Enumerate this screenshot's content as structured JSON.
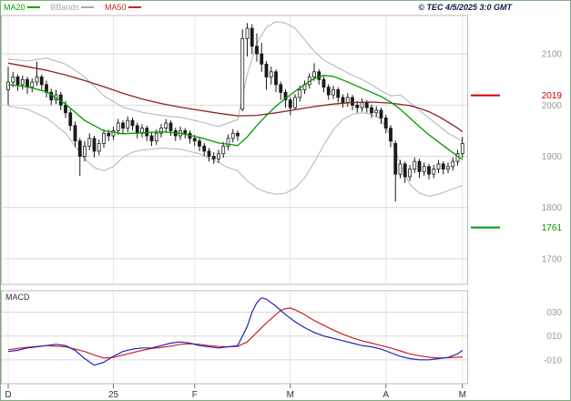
{
  "header": {
    "copyright": "© TEC 4/5/2025 3:0 GMT"
  },
  "legend": {
    "items": [
      {
        "label": "MA20",
        "color": "#00aa00"
      },
      {
        "label": "BBands",
        "color": "#aaaaaa"
      },
      {
        "label": "MA50",
        "color": "#cc2222"
      }
    ]
  },
  "macd_panel": {
    "title": "MACD"
  },
  "levels": {
    "resistance": {
      "value": 2019,
      "label": "2019"
    },
    "support": {
      "value": 1761,
      "label": "1761"
    }
  },
  "colors": {
    "ma20": "#009900",
    "ma50": "#8b2323",
    "bbands": "#b3b3b3",
    "candle": "#1a1a1a",
    "macd_line": "#2222bb",
    "macd_signal": "#cc2222",
    "grid_h": "#d9d9d9",
    "grid_v": "#e7e7e7",
    "frame": "#bbbbbb",
    "axis_text": "#999999",
    "tick_text": "#333333",
    "resistance": "#cc0000",
    "support": "#009900"
  },
  "chart_data": {
    "type": "candlestick",
    "title": "",
    "price_ylim": [
      1650,
      2175
    ],
    "macd_ylim": [
      -0.3,
      0.48
    ],
    "price_ticks": [
      2100,
      2000,
      1900,
      1800,
      1700
    ],
    "macd_ticks": [
      {
        "v": 0.3,
        "label": "030"
      },
      {
        "v": 0.1,
        "label": "010"
      },
      {
        "v": -0.1,
        "label": "-010"
      }
    ],
    "x_ticks": [
      {
        "i": 0,
        "label": "D"
      },
      {
        "i": 22,
        "label": "25"
      },
      {
        "i": 39,
        "label": "F"
      },
      {
        "i": 59,
        "label": "M"
      },
      {
        "i": 79,
        "label": "A"
      },
      {
        "i": 95,
        "label": "M"
      }
    ],
    "candles": [
      [
        2030,
        2075,
        2000,
        2045
      ],
      [
        2045,
        2065,
        2035,
        2055
      ],
      [
        2055,
        2060,
        2028,
        2040
      ],
      [
        2040,
        2058,
        2030,
        2050
      ],
      [
        2050,
        2055,
        2022,
        2035
      ],
      [
        2035,
        2052,
        2025,
        2045
      ],
      [
        2045,
        2085,
        2038,
        2055
      ],
      [
        2055,
        2060,
        2030,
        2040
      ],
      [
        2040,
        2048,
        2015,
        2025
      ],
      [
        2025,
        2032,
        2000,
        2010
      ],
      [
        2010,
        2030,
        2002,
        2020
      ],
      [
        2020,
        2026,
        1990,
        2000
      ],
      [
        2000,
        2008,
        1975,
        1985
      ],
      [
        1985,
        1992,
        1950,
        1960
      ],
      [
        1960,
        1968,
        1918,
        1930
      ],
      [
        1930,
        1936,
        1862,
        1900
      ],
      [
        1900,
        1930,
        1890,
        1920
      ],
      [
        1920,
        1945,
        1912,
        1935
      ],
      [
        1935,
        1940,
        1898,
        1910
      ],
      [
        1910,
        1933,
        1902,
        1925
      ],
      [
        1925,
        1953,
        1917,
        1945
      ],
      [
        1945,
        1952,
        1930,
        1940
      ],
      [
        1940,
        1958,
        1932,
        1950
      ],
      [
        1950,
        1973,
        1942,
        1965
      ],
      [
        1965,
        1970,
        1945,
        1955
      ],
      [
        1955,
        1978,
        1947,
        1970
      ],
      [
        1970,
        1976,
        1950,
        1960
      ],
      [
        1960,
        1966,
        1935,
        1945
      ],
      [
        1945,
        1963,
        1937,
        1955
      ],
      [
        1955,
        1960,
        1930,
        1940
      ],
      [
        1940,
        1946,
        1920,
        1930
      ],
      [
        1930,
        1953,
        1922,
        1945
      ],
      [
        1945,
        1963,
        1937,
        1955
      ],
      [
        1955,
        1973,
        1947,
        1965
      ],
      [
        1965,
        1970,
        1940,
        1950
      ],
      [
        1950,
        1956,
        1930,
        1940
      ],
      [
        1940,
        1958,
        1932,
        1950
      ],
      [
        1950,
        1955,
        1935,
        1945
      ],
      [
        1945,
        1950,
        1925,
        1935
      ],
      [
        1935,
        1942,
        1920,
        1930
      ],
      [
        1930,
        1936,
        1910,
        1920
      ],
      [
        1920,
        1926,
        1900,
        1910
      ],
      [
        1910,
        1916,
        1890,
        1900
      ],
      [
        1900,
        1908,
        1885,
        1895
      ],
      [
        1895,
        1913,
        1887,
        1905
      ],
      [
        1905,
        1928,
        1897,
        1920
      ],
      [
        1920,
        1943,
        1912,
        1935
      ],
      [
        1935,
        1953,
        1927,
        1945
      ],
      [
        1945,
        1950,
        1930,
        1940
      ],
      [
        1992,
        2148,
        1988,
        2130
      ],
      [
        2130,
        2160,
        2095,
        2150
      ],
      [
        2150,
        2158,
        2100,
        2115
      ],
      [
        2115,
        2140,
        2085,
        2100
      ],
      [
        2100,
        2122,
        2065,
        2080
      ],
      [
        2080,
        2086,
        2030,
        2055
      ],
      [
        2055,
        2075,
        2040,
        2065
      ],
      [
        2065,
        2070,
        2025,
        2040
      ],
      [
        2040,
        2046,
        2010,
        2025
      ],
      [
        2025,
        2031,
        1995,
        2010
      ],
      [
        2010,
        2016,
        1980,
        1995
      ],
      [
        1995,
        2022,
        1990,
        2015
      ],
      [
        2015,
        2038,
        2007,
        2030
      ],
      [
        2030,
        2048,
        2022,
        2040
      ],
      [
        2040,
        2062,
        2032,
        2055
      ],
      [
        2055,
        2082,
        2047,
        2065
      ],
      [
        2065,
        2070,
        2040,
        2050
      ],
      [
        2050,
        2056,
        2025,
        2035
      ],
      [
        2035,
        2041,
        2010,
        2020
      ],
      [
        2020,
        2038,
        2012,
        2030
      ],
      [
        2030,
        2035,
        2005,
        2015
      ],
      [
        2015,
        2021,
        1995,
        2005
      ],
      [
        2005,
        2023,
        1997,
        2015
      ],
      [
        2015,
        2020,
        1990,
        2000
      ],
      [
        2000,
        2008,
        1985,
        1995
      ],
      [
        1995,
        2013,
        1987,
        2005
      ],
      [
        2005,
        2010,
        1985,
        1995
      ],
      [
        1995,
        2001,
        1975,
        1985
      ],
      [
        1985,
        1998,
        1977,
        1990
      ],
      [
        1990,
        1995,
        1963,
        1975
      ],
      [
        1975,
        1981,
        1945,
        1955
      ],
      [
        1955,
        1961,
        1918,
        1930
      ],
      [
        1925,
        1931,
        1812,
        1865
      ],
      [
        1865,
        1893,
        1857,
        1885
      ],
      [
        1885,
        1890,
        1848,
        1860
      ],
      [
        1860,
        1883,
        1852,
        1875
      ],
      [
        1875,
        1898,
        1867,
        1890
      ],
      [
        1890,
        1895,
        1858,
        1870
      ],
      [
        1870,
        1888,
        1862,
        1880
      ],
      [
        1880,
        1885,
        1855,
        1865
      ],
      [
        1865,
        1883,
        1857,
        1875
      ],
      [
        1875,
        1893,
        1867,
        1885
      ],
      [
        1885,
        1890,
        1865,
        1875
      ],
      [
        1875,
        1888,
        1867,
        1880
      ],
      [
        1880,
        1898,
        1872,
        1890
      ],
      [
        1890,
        1913,
        1882,
        1905
      ],
      [
        1905,
        1938,
        1897,
        1925
      ]
    ],
    "ma20": [
      [
        0,
        2040
      ],
      [
        4,
        2036
      ],
      [
        8,
        2026
      ],
      [
        12,
        2002
      ],
      [
        16,
        1970
      ],
      [
        20,
        1950
      ],
      [
        24,
        1944
      ],
      [
        28,
        1946
      ],
      [
        32,
        1948
      ],
      [
        36,
        1945
      ],
      [
        40,
        1937
      ],
      [
        44,
        1926
      ],
      [
        48,
        1921
      ],
      [
        50,
        1938
      ],
      [
        52,
        1960
      ],
      [
        54,
        1980
      ],
      [
        56,
        1998
      ],
      [
        58,
        2013
      ],
      [
        60,
        2027
      ],
      [
        62,
        2040
      ],
      [
        64,
        2052
      ],
      [
        66,
        2058
      ],
      [
        68,
        2056
      ],
      [
        70,
        2049
      ],
      [
        72,
        2041
      ],
      [
        74,
        2033
      ],
      [
        76,
        2025
      ],
      [
        78,
        2017
      ],
      [
        80,
        2006
      ],
      [
        82,
        1992
      ],
      [
        84,
        1975
      ],
      [
        86,
        1958
      ],
      [
        88,
        1942
      ],
      [
        90,
        1928
      ],
      [
        92,
        1914
      ],
      [
        94,
        1900
      ],
      [
        95,
        1894
      ]
    ],
    "ma50": [
      [
        0,
        2082
      ],
      [
        4,
        2075
      ],
      [
        8,
        2068
      ],
      [
        12,
        2059
      ],
      [
        16,
        2048
      ],
      [
        20,
        2036
      ],
      [
        24,
        2023
      ],
      [
        28,
        2012
      ],
      [
        32,
        2003
      ],
      [
        36,
        1996
      ],
      [
        40,
        1990
      ],
      [
        44,
        1984
      ],
      [
        48,
        1979
      ],
      [
        52,
        1980
      ],
      [
        56,
        1985
      ],
      [
        60,
        1991
      ],
      [
        64,
        1997
      ],
      [
        68,
        2002
      ],
      [
        72,
        2005
      ],
      [
        76,
        2006
      ],
      [
        80,
        2004
      ],
      [
        84,
        1999
      ],
      [
        86,
        1994
      ],
      [
        88,
        1987
      ],
      [
        90,
        1978
      ],
      [
        92,
        1967
      ],
      [
        94,
        1955
      ],
      [
        95,
        1948
      ]
    ],
    "bb_upper": [
      [
        0,
        2090
      ],
      [
        4,
        2086
      ],
      [
        8,
        2092
      ],
      [
        12,
        2080
      ],
      [
        14,
        2068
      ],
      [
        16,
        2055
      ],
      [
        20,
        2018
      ],
      [
        24,
        1996
      ],
      [
        28,
        1986
      ],
      [
        32,
        1980
      ],
      [
        36,
        1976
      ],
      [
        40,
        1968
      ],
      [
        44,
        1958
      ],
      [
        48,
        1972
      ],
      [
        50,
        2060
      ],
      [
        52,
        2120
      ],
      [
        54,
        2152
      ],
      [
        56,
        2163
      ],
      [
        58,
        2160
      ],
      [
        60,
        2150
      ],
      [
        62,
        2128
      ],
      [
        64,
        2105
      ],
      [
        66,
        2088
      ],
      [
        68,
        2078
      ],
      [
        70,
        2068
      ],
      [
        72,
        2058
      ],
      [
        74,
        2050
      ],
      [
        76,
        2040
      ],
      [
        78,
        2028
      ],
      [
        80,
        2018
      ],
      [
        82,
        2020
      ],
      [
        84,
        2005
      ],
      [
        86,
        1990
      ],
      [
        88,
        1975
      ],
      [
        90,
        1960
      ],
      [
        92,
        1945
      ],
      [
        95,
        1930
      ]
    ],
    "bb_lower": [
      [
        0,
        1998
      ],
      [
        4,
        1992
      ],
      [
        8,
        1975
      ],
      [
        12,
        1945
      ],
      [
        16,
        1895
      ],
      [
        18,
        1878
      ],
      [
        20,
        1872
      ],
      [
        22,
        1880
      ],
      [
        24,
        1898
      ],
      [
        26,
        1908
      ],
      [
        28,
        1912
      ],
      [
        32,
        1916
      ],
      [
        36,
        1914
      ],
      [
        40,
        1905
      ],
      [
        44,
        1888
      ],
      [
        46,
        1878
      ],
      [
        48,
        1872
      ],
      [
        50,
        1852
      ],
      [
        52,
        1838
      ],
      [
        54,
        1830
      ],
      [
        56,
        1826
      ],
      [
        58,
        1828
      ],
      [
        60,
        1838
      ],
      [
        62,
        1858
      ],
      [
        64,
        1888
      ],
      [
        66,
        1922
      ],
      [
        68,
        1952
      ],
      [
        70,
        1972
      ],
      [
        72,
        1982
      ],
      [
        74,
        1985
      ],
      [
        76,
        1982
      ],
      [
        78,
        1972
      ],
      [
        80,
        1940
      ],
      [
        82,
        1885
      ],
      [
        84,
        1845
      ],
      [
        86,
        1828
      ],
      [
        88,
        1822
      ],
      [
        90,
        1826
      ],
      [
        92,
        1833
      ],
      [
        94,
        1840
      ],
      [
        95,
        1843
      ]
    ],
    "macd_line": [
      [
        0,
        -0.03
      ],
      [
        2,
        -0.02
      ],
      [
        4,
        0
      ],
      [
        6,
        0.01
      ],
      [
        8,
        0.02
      ],
      [
        10,
        0.03
      ],
      [
        12,
        0.02
      ],
      [
        14,
        -0.02
      ],
      [
        16,
        -0.09
      ],
      [
        18,
        -0.145
      ],
      [
        20,
        -0.12
      ],
      [
        22,
        -0.07
      ],
      [
        24,
        -0.03
      ],
      [
        26,
        -0.01
      ],
      [
        28,
        0
      ],
      [
        30,
        0
      ],
      [
        32,
        0.02
      ],
      [
        34,
        0.04
      ],
      [
        36,
        0.05
      ],
      [
        38,
        0.04
      ],
      [
        40,
        0.02
      ],
      [
        42,
        0.01
      ],
      [
        44,
        0
      ],
      [
        46,
        0.01
      ],
      [
        48,
        0.02
      ],
      [
        50,
        0.18
      ],
      [
        51,
        0.3
      ],
      [
        52,
        0.38
      ],
      [
        53,
        0.42
      ],
      [
        54,
        0.41
      ],
      [
        56,
        0.35
      ],
      [
        58,
        0.28
      ],
      [
        60,
        0.22
      ],
      [
        62,
        0.17
      ],
      [
        64,
        0.13
      ],
      [
        66,
        0.1
      ],
      [
        68,
        0.08
      ],
      [
        70,
        0.06
      ],
      [
        72,
        0.04
      ],
      [
        74,
        0.02
      ],
      [
        76,
        0.01
      ],
      [
        78,
        -0.01
      ],
      [
        80,
        -0.04
      ],
      [
        82,
        -0.07
      ],
      [
        84,
        -0.09
      ],
      [
        86,
        -0.1
      ],
      [
        88,
        -0.1
      ],
      [
        90,
        -0.09
      ],
      [
        92,
        -0.08
      ],
      [
        94,
        -0.05
      ],
      [
        95,
        -0.02
      ]
    ],
    "macd_signal": [
      [
        0,
        -0.015
      ],
      [
        4,
        0.005
      ],
      [
        8,
        0.02
      ],
      [
        12,
        0.01
      ],
      [
        16,
        -0.03
      ],
      [
        18,
        -0.06
      ],
      [
        20,
        -0.085
      ],
      [
        22,
        -0.08
      ],
      [
        24,
        -0.06
      ],
      [
        26,
        -0.04
      ],
      [
        28,
        -0.02
      ],
      [
        30,
        -0.005
      ],
      [
        32,
        0.005
      ],
      [
        34,
        0.015
      ],
      [
        36,
        0.03
      ],
      [
        38,
        0.035
      ],
      [
        40,
        0.03
      ],
      [
        42,
        0.02
      ],
      [
        44,
        0.012
      ],
      [
        46,
        0.01
      ],
      [
        48,
        0.013
      ],
      [
        50,
        0.05
      ],
      [
        52,
        0.13
      ],
      [
        54,
        0.21
      ],
      [
        56,
        0.28
      ],
      [
        57,
        0.315
      ],
      [
        58,
        0.33
      ],
      [
        59,
        0.335
      ],
      [
        60,
        0.32
      ],
      [
        62,
        0.28
      ],
      [
        64,
        0.23
      ],
      [
        66,
        0.19
      ],
      [
        68,
        0.15
      ],
      [
        70,
        0.115
      ],
      [
        72,
        0.085
      ],
      [
        74,
        0.06
      ],
      [
        76,
        0.04
      ],
      [
        78,
        0.02
      ],
      [
        80,
        0
      ],
      [
        82,
        -0.025
      ],
      [
        84,
        -0.05
      ],
      [
        86,
        -0.065
      ],
      [
        88,
        -0.078
      ],
      [
        90,
        -0.085
      ],
      [
        92,
        -0.082
      ],
      [
        94,
        -0.078
      ],
      [
        95,
        -0.075
      ]
    ]
  }
}
